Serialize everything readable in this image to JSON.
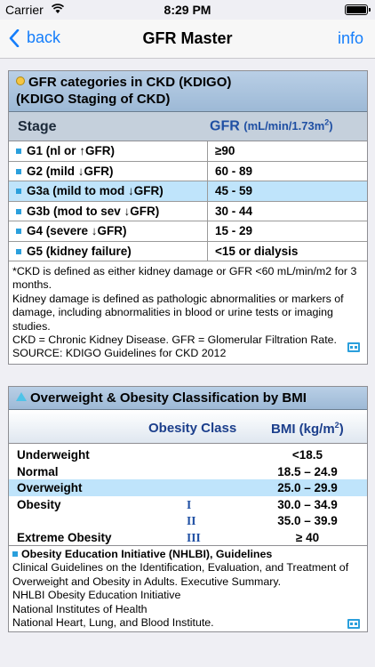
{
  "status_bar": {
    "carrier": "Carrier",
    "time": "8:29 PM"
  },
  "nav": {
    "back_label": "back",
    "title": "GFR Master",
    "info_label": "info"
  },
  "ckd": {
    "title_line1": "GFR categories in CKD (KDIGO)",
    "title_line2": "(KDIGO Staging of CKD)",
    "col_stage": "Stage",
    "col_gfr": "GFR",
    "col_gfr_unit": "(mL/min/1.73m",
    "col_gfr_unit_sup": "2",
    "col_gfr_unit_close": ")",
    "rows": [
      {
        "stage": "G1 (nl or ↑GFR)",
        "gfr": "≥90",
        "highlight": false
      },
      {
        "stage": "G2 (mild ↓GFR)",
        "gfr": "60 - 89",
        "highlight": false
      },
      {
        "stage": "G3a (mild to mod ↓GFR)",
        "gfr": "45 - 59",
        "highlight": true
      },
      {
        "stage": "G3b (mod to sev ↓GFR)",
        "gfr": "30 - 44",
        "highlight": false
      },
      {
        "stage": "G4 (severe ↓GFR)",
        "gfr": "15 - 29",
        "highlight": false
      },
      {
        "stage": "G5 (kidney failure)",
        "gfr": "<15 or dialysis",
        "highlight": false
      }
    ],
    "notes": [
      "*CKD is defined as either kidney damage or GFR <60 mL/min/m2 for 3 months.",
      "Kidney damage is defined as pathologic abnormalities or markers of damage, including abnormalities in blood or urine tests or imaging studies.",
      "CKD = Chronic Kidney Disease. GFR = Glomerular Filtration Rate.",
      "SOURCE: KDIGO Guidelines for CKD 2012"
    ]
  },
  "bmi": {
    "title": "Overweight & Obesity Classification by BMI",
    "col_class": "Obesity Class",
    "col_bmi": "BMI (kg/m",
    "col_bmi_sup": "2",
    "col_bmi_close": ")",
    "rows": [
      {
        "cls": "Underweight",
        "sub": "",
        "val": "<18.5",
        "highlight": false
      },
      {
        "cls": "Normal",
        "sub": "",
        "val": "18.5 – 24.9",
        "highlight": false
      },
      {
        "cls": "Overweight",
        "sub": "",
        "val": "25.0 – 29.9",
        "highlight": true
      },
      {
        "cls": "Obesity",
        "sub": "I",
        "val": "30.0 – 34.9",
        "highlight": false
      },
      {
        "cls": "",
        "sub": "II",
        "val": "35.0 – 39.9",
        "highlight": false
      },
      {
        "cls": "Extreme Obesity",
        "sub": "III",
        "val": "≥ 40",
        "highlight": false
      }
    ],
    "note_head": "Obesity Education Initiative (NHLBI), Guidelines",
    "notes": [
      "Clinical Guidelines on the Identification, Evaluation, and Treatment of Overweight and Obesity in Adults. Executive Summary.",
      "NHLBI Obesity Education Initiative",
      "National Institutes of Health",
      "National Heart, Lung, and Blood Institute."
    ]
  },
  "icons": {
    "ckd_header": "coin-icon",
    "bmi_header": "triangle-icon",
    "expand": "expand-icon",
    "back": "chevron-left-icon",
    "wifi": "wifi-icon",
    "battery": "battery-icon"
  },
  "colors": {
    "accent": "#157efb",
    "highlight": "#bfe4fb",
    "bullet": "#2a9fdc"
  }
}
